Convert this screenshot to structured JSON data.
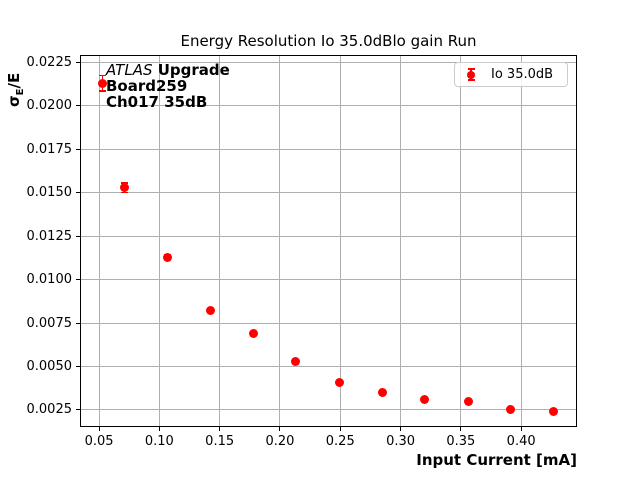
{
  "chart_data": {
    "type": "scatter",
    "title": "Energy Resolution Io 35.0dBlo gain Run",
    "xlabel": "Input Current [mA]",
    "ylabel": "σ_E/E",
    "ylabel_sigma": "σ",
    "ylabel_sub": "E",
    "ylabel_rest": "/E",
    "xlim": [
      0.0342,
      0.4463
    ],
    "ylim": [
      0.00152,
      0.02293
    ],
    "grid": true,
    "legend_position": "upper right",
    "marker_color": "#ff0000",
    "grid_color": "#b0b0b0",
    "xticks": [
      {
        "v": 0.05,
        "label": "0.05"
      },
      {
        "v": 0.1,
        "label": "0.10"
      },
      {
        "v": 0.15,
        "label": "0.15"
      },
      {
        "v": 0.2,
        "label": "0.20"
      },
      {
        "v": 0.25,
        "label": "0.25"
      },
      {
        "v": 0.3,
        "label": "0.30"
      },
      {
        "v": 0.35,
        "label": "0.35"
      },
      {
        "v": 0.4,
        "label": "0.40"
      }
    ],
    "yticks": [
      {
        "v": 0.0025,
        "label": "0.0025"
      },
      {
        "v": 0.005,
        "label": "0.0050"
      },
      {
        "v": 0.0075,
        "label": "0.0075"
      },
      {
        "v": 0.01,
        "label": "0.0100"
      },
      {
        "v": 0.0125,
        "label": "0.0125"
      },
      {
        "v": 0.015,
        "label": "0.0150"
      },
      {
        "v": 0.0175,
        "label": "0.0175"
      },
      {
        "v": 0.02,
        "label": "0.0200"
      },
      {
        "v": 0.0225,
        "label": "0.0225"
      }
    ],
    "series": [
      {
        "name": "Io 35.0dB",
        "color": "#ff0000",
        "x": [
          0.053,
          0.071,
          0.107,
          0.142,
          0.178,
          0.213,
          0.249,
          0.285,
          0.32,
          0.356,
          0.391,
          0.427
        ],
        "y": [
          0.0213,
          0.0153,
          0.0113,
          0.0082,
          0.0069,
          0.0053,
          0.0041,
          0.0035,
          0.0031,
          0.003,
          0.0025,
          0.0024
        ],
        "yerr": [
          0.00045,
          0.00028,
          0.00015,
          0.0001,
          8e-05,
          7e-05,
          6e-05,
          5e-05,
          5e-05,
          5e-05,
          4e-05,
          4e-05
        ]
      }
    ],
    "annotation": {
      "experiment": "ATLAS",
      "tag": " Upgrade",
      "board": "Board259",
      "channel": "Ch017 35dB"
    }
  }
}
